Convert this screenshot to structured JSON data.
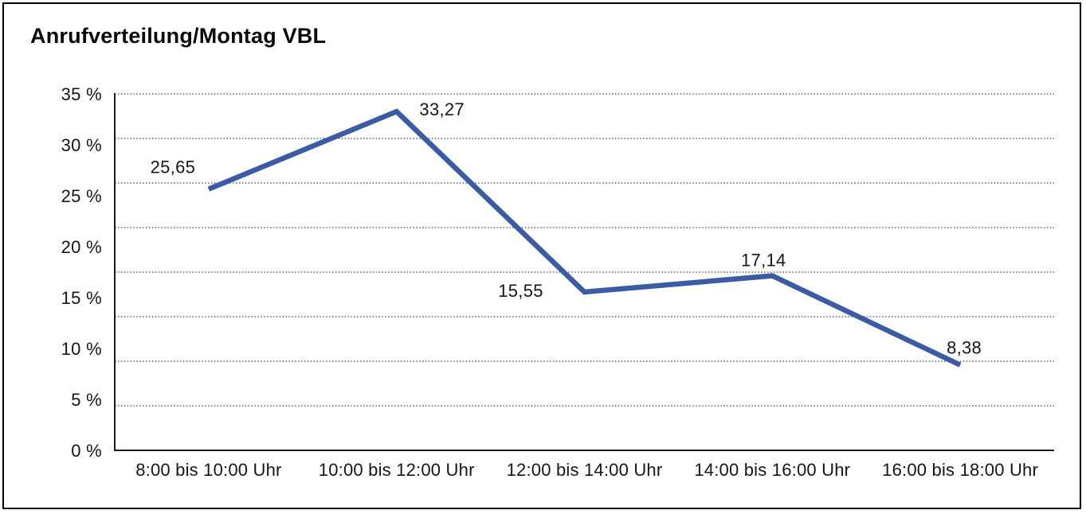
{
  "title": "Anrufverteilung/Montag VBL",
  "chart_data": {
    "type": "line",
    "title": "Anrufverteilung/Montag VBL",
    "categories": [
      "8:00 bis 10:00 Uhr",
      "10:00 bis 12:00 Uhr",
      "12:00 bis 14:00 Uhr",
      "14:00 bis 16:00 Uhr",
      "16:00 bis 18:00 Uhr"
    ],
    "series": [
      {
        "name": "Anrufverteilung",
        "values": [
          25.65,
          33.27,
          15.55,
          17.14,
          8.38
        ],
        "value_labels": [
          "25,65",
          "33,27",
          "15,55",
          "17,14",
          "8,38"
        ]
      }
    ],
    "xlabel": "",
    "ylabel": "",
    "ylim": [
      0,
      35
    ],
    "ytick_step": 5,
    "ytick_labels": [
      "0 %",
      "5 %",
      "10 %",
      "15 %",
      "20 %",
      "25 %",
      "30 %",
      "35 %"
    ],
    "grid": "horizontal-dotted",
    "grid_divisions": 8,
    "legend_position": "none",
    "colors": {
      "line": "#3b5ba4",
      "text": "#161616",
      "grid": "#3f3f3f",
      "axis": "#1a1a1a",
      "frame_border": "#000000",
      "background": "#ffffff"
    }
  }
}
